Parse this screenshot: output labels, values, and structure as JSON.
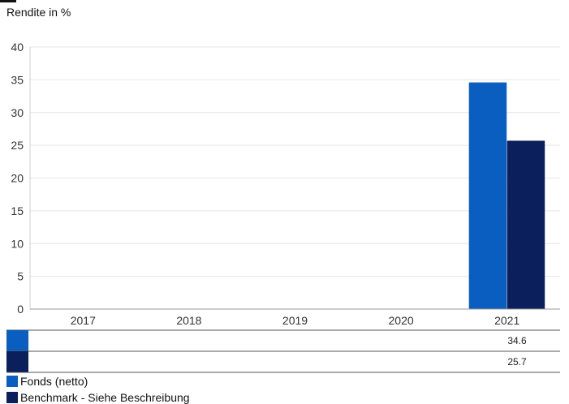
{
  "chart_data": {
    "type": "bar",
    "ylabel": "Rendite in %",
    "categories": [
      "2017",
      "2018",
      "2019",
      "2020",
      "2021"
    ],
    "yticks": [
      "0",
      "5",
      "10",
      "15",
      "20",
      "25",
      "30",
      "35",
      "40"
    ],
    "ylim": [
      0,
      40
    ],
    "grid": true,
    "legend_position": "bottom",
    "series": [
      {
        "name": "Fonds (netto)",
        "color": "#0a5ec0",
        "values": [
          null,
          null,
          null,
          null,
          34.6
        ],
        "table_values": [
          "",
          "",
          "",
          "",
          "34.6"
        ]
      },
      {
        "name": "Benchmark - Siehe Beschreibung",
        "color": "#0b1f5c",
        "values": [
          null,
          null,
          null,
          null,
          25.7
        ],
        "table_values": [
          "",
          "",
          "",
          "",
          "25.7"
        ]
      }
    ]
  }
}
